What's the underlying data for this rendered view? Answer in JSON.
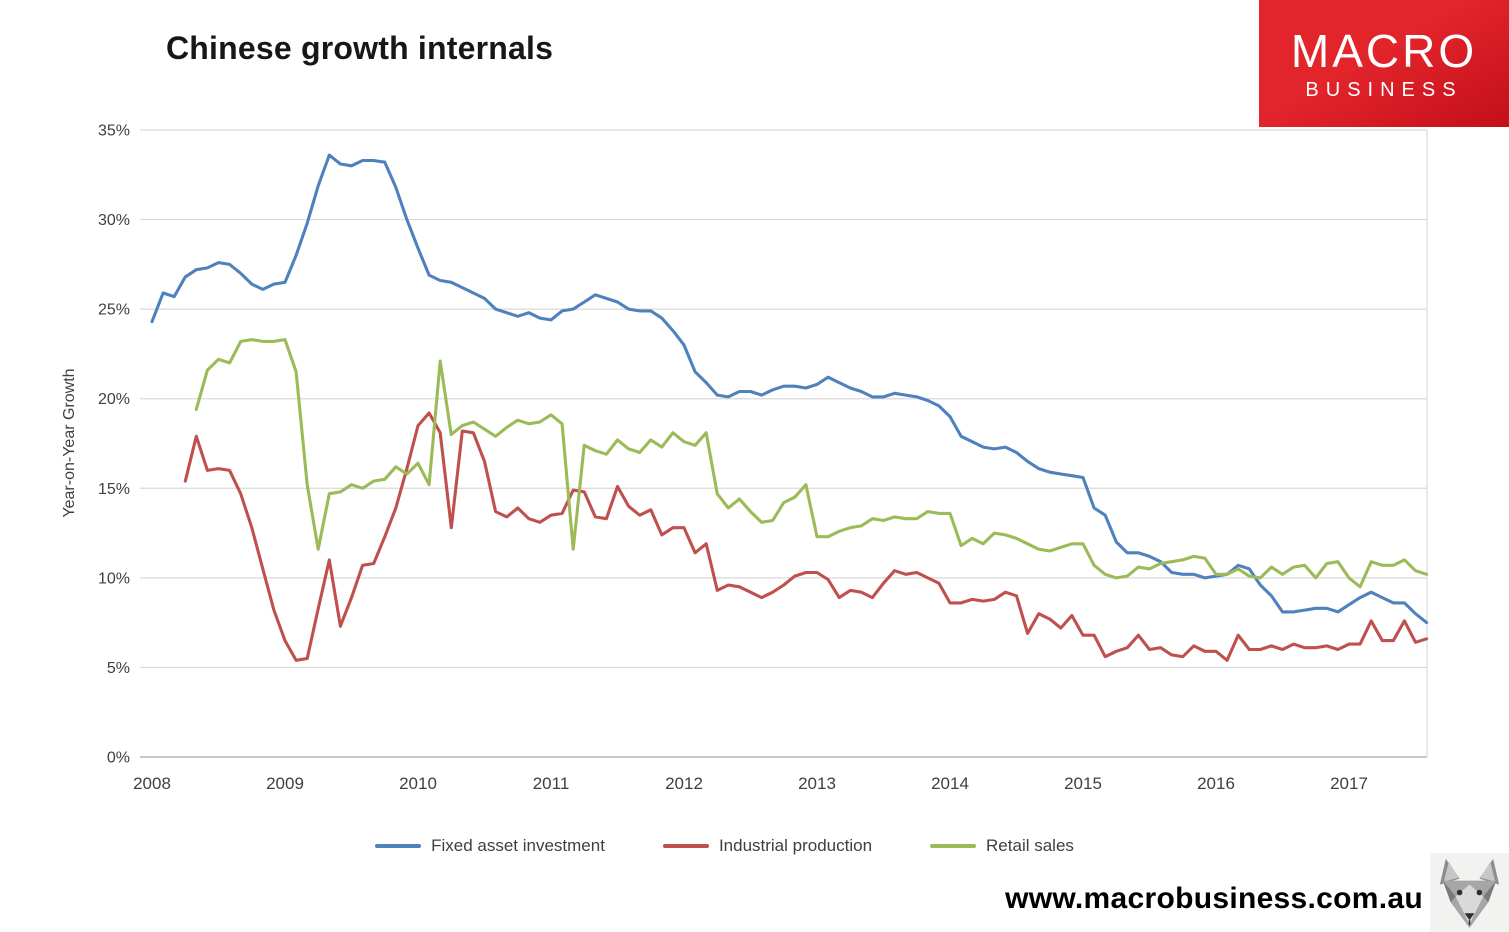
{
  "logo": {
    "line1": "MACRO",
    "line2": "BUSINESS",
    "background": "#e2242b",
    "background_dark": "#c30f19",
    "text_color": "#ffffff"
  },
  "footer": {
    "website": "www.macrobusiness.com.au",
    "logo_icon": "wolf-icon"
  },
  "chart_data": {
    "type": "line",
    "title": "Chinese growth internals",
    "ylabel": "Year-on-Year Growth",
    "ylim": [
      0,
      35
    ],
    "x_range": [
      2008.0,
      2017.583
    ],
    "grid": "horizontal",
    "grid_color": "#dadada",
    "axis_color": "#b5b5b5",
    "tick_text_color": "#3f3f3f",
    "legend_position": "bottom",
    "y_ticks": [
      {
        "value": 0,
        "label": "0%"
      },
      {
        "value": 5,
        "label": "5%"
      },
      {
        "value": 10,
        "label": "10%"
      },
      {
        "value": 15,
        "label": "15%"
      },
      {
        "value": 20,
        "label": "20%"
      },
      {
        "value": 25,
        "label": "25%"
      },
      {
        "value": 30,
        "label": "30%"
      },
      {
        "value": 35,
        "label": "35%"
      }
    ],
    "x_ticks": [
      {
        "value": 2008,
        "label": "2008"
      },
      {
        "value": 2009,
        "label": "2009"
      },
      {
        "value": 2010,
        "label": "2010"
      },
      {
        "value": 2011,
        "label": "2011"
      },
      {
        "value": 2012,
        "label": "2012"
      },
      {
        "value": 2013,
        "label": "2013"
      },
      {
        "value": 2014,
        "label": "2014"
      },
      {
        "value": 2015,
        "label": "2015"
      },
      {
        "value": 2016,
        "label": "2016"
      },
      {
        "value": 2017,
        "label": "2017"
      }
    ],
    "x_unit": "decimal_year_monthly",
    "series": [
      {
        "name": "Fixed asset investment",
        "color": "#4f81bd",
        "x_start": 2008.0,
        "values": [
          24.3,
          25.9,
          25.7,
          26.8,
          27.2,
          27.3,
          27.6,
          27.5,
          27.0,
          26.4,
          26.1,
          26.4,
          26.5,
          28.0,
          29.8,
          31.9,
          33.6,
          33.1,
          33.0,
          33.3,
          33.3,
          33.2,
          31.8,
          30.0,
          28.4,
          26.9,
          26.6,
          26.5,
          26.2,
          25.9,
          25.6,
          25.0,
          24.8,
          24.6,
          24.8,
          24.5,
          24.4,
          24.9,
          25.0,
          25.4,
          25.8,
          25.6,
          25.4,
          25.0,
          24.9,
          24.9,
          24.5,
          23.8,
          23.0,
          21.5,
          20.9,
          20.2,
          20.1,
          20.4,
          20.4,
          20.2,
          20.5,
          20.7,
          20.7,
          20.6,
          20.8,
          21.2,
          20.9,
          20.6,
          20.4,
          20.1,
          20.1,
          20.3,
          20.2,
          20.1,
          19.9,
          19.6,
          19.0,
          17.9,
          17.6,
          17.3,
          17.2,
          17.3,
          17.0,
          16.5,
          16.1,
          15.9,
          15.8,
          15.7,
          15.6,
          13.9,
          13.5,
          12.0,
          11.4,
          11.4,
          11.2,
          10.9,
          10.3,
          10.2,
          10.2,
          10.0,
          10.1,
          10.2,
          10.7,
          10.5,
          9.6,
          9.0,
          8.1,
          8.1,
          8.2,
          8.3,
          8.3,
          8.1,
          8.5,
          8.9,
          9.2,
          8.9,
          8.6,
          8.6,
          8.0,
          7.5
        ]
      },
      {
        "name": "Industrial production",
        "color": "#c0504d",
        "x_start": 2008.25,
        "values": [
          15.4,
          17.9,
          16.0,
          16.1,
          16.0,
          14.7,
          12.8,
          10.5,
          8.2,
          6.5,
          5.4,
          5.5,
          8.3,
          11.0,
          7.3,
          8.9,
          10.7,
          10.8,
          12.3,
          13.9,
          16.1,
          18.5,
          19.2,
          18.1,
          12.8,
          18.2,
          18.1,
          16.5,
          13.7,
          13.4,
          13.9,
          13.3,
          13.1,
          13.5,
          13.6,
          14.9,
          14.8,
          13.4,
          13.3,
          15.1,
          14.0,
          13.5,
          13.8,
          12.4,
          12.8,
          12.8,
          11.4,
          11.9,
          9.3,
          9.6,
          9.5,
          9.2,
          8.9,
          9.2,
          9.6,
          10.1,
          10.3,
          10.3,
          9.9,
          8.9,
          9.3,
          9.2,
          8.9,
          9.7,
          10.4,
          10.2,
          10.3,
          10.0,
          9.7,
          8.6,
          8.6,
          8.8,
          8.7,
          8.8,
          9.2,
          9.0,
          6.9,
          8.0,
          7.7,
          7.2,
          7.9,
          6.8,
          6.8,
          5.6,
          5.9,
          6.1,
          6.8,
          6.0,
          6.1,
          5.7,
          5.6,
          6.2,
          5.9,
          5.9,
          5.4,
          6.8,
          6.0,
          6.0,
          6.2,
          6.0,
          6.3,
          6.1,
          6.1,
          6.2,
          6.0,
          6.3,
          6.3,
          7.6,
          6.5,
          6.5,
          7.6,
          6.4,
          6.6
        ]
      },
      {
        "name": "Retail sales",
        "color": "#9bbb59",
        "x_start": 2008.3333,
        "values": [
          19.4,
          21.6,
          22.2,
          22.0,
          23.2,
          23.3,
          23.2,
          23.2,
          23.3,
          21.5,
          15.2,
          11.6,
          14.7,
          14.8,
          15.2,
          15.0,
          15.4,
          15.5,
          16.2,
          15.8,
          16.4,
          15.2,
          22.1,
          18.0,
          18.5,
          18.7,
          18.3,
          17.9,
          18.4,
          18.8,
          18.6,
          18.7,
          19.1,
          18.6,
          11.6,
          17.4,
          17.1,
          16.9,
          17.7,
          17.2,
          17.0,
          17.7,
          17.3,
          18.1,
          17.6,
          17.4,
          18.1,
          14.7,
          13.9,
          14.4,
          13.7,
          13.1,
          13.2,
          14.2,
          14.5,
          15.2,
          12.3,
          12.3,
          12.6,
          12.8,
          12.9,
          13.3,
          13.2,
          13.4,
          13.3,
          13.3,
          13.7,
          13.6,
          13.6,
          11.8,
          12.2,
          11.9,
          12.5,
          12.4,
          12.2,
          11.9,
          11.6,
          11.5,
          11.7,
          11.9,
          11.9,
          10.7,
          10.2,
          10.0,
          10.1,
          10.6,
          10.5,
          10.8,
          10.9,
          11.0,
          11.2,
          11.1,
          10.2,
          10.2,
          10.5,
          10.1,
          10.0,
          10.6,
          10.2,
          10.6,
          10.7,
          10.0,
          10.8,
          10.9,
          10.0,
          9.5,
          10.9,
          10.7,
          10.7,
          11.0,
          10.4,
          10.2
        ]
      }
    ]
  }
}
